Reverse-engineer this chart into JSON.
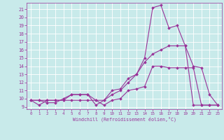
{
  "xlabel": "Windchill (Refroidissement éolien,°C)",
  "bg_color": "#c8eaea",
  "line_color": "#993399",
  "grid_color": "#ffffff",
  "xlim": [
    -0.5,
    23.5
  ],
  "ylim": [
    8.7,
    21.8
  ],
  "yticks": [
    9,
    10,
    11,
    12,
    13,
    14,
    15,
    16,
    17,
    18,
    19,
    20,
    21
  ],
  "xticks": [
    0,
    1,
    2,
    3,
    4,
    5,
    6,
    7,
    8,
    9,
    10,
    11,
    12,
    13,
    14,
    15,
    16,
    17,
    18,
    19,
    20,
    21,
    22,
    23
  ],
  "line1_x": [
    0,
    1,
    2,
    3,
    4,
    5,
    6,
    7,
    8,
    9,
    10,
    11,
    12,
    13,
    14,
    15,
    16,
    17,
    18,
    19,
    20,
    21,
    22,
    23
  ],
  "line1_y": [
    9.8,
    9.8,
    9.5,
    9.5,
    10.0,
    10.5,
    10.5,
    10.5,
    9.2,
    9.8,
    11.0,
    11.2,
    12.5,
    13.0,
    15.0,
    21.2,
    21.5,
    18.7,
    19.0,
    16.5,
    14.0,
    13.8,
    10.5,
    9.2
  ],
  "line2_x": [
    0,
    1,
    2,
    3,
    4,
    5,
    6,
    7,
    8,
    9,
    10,
    11,
    12,
    13,
    14,
    15,
    16,
    17,
    18,
    19,
    20,
    21,
    22,
    23
  ],
  "line2_y": [
    9.8,
    9.8,
    9.8,
    9.8,
    9.8,
    9.8,
    9.8,
    9.8,
    9.8,
    9.8,
    10.5,
    11.0,
    12.0,
    13.0,
    14.5,
    15.5,
    16.0,
    16.5,
    16.5,
    16.5,
    9.2,
    9.2,
    9.2,
    9.2
  ],
  "line3_x": [
    0,
    1,
    2,
    3,
    4,
    5,
    6,
    7,
    8,
    9,
    10,
    11,
    12,
    13,
    14,
    15,
    16,
    17,
    18,
    19,
    20,
    21,
    22,
    23
  ],
  "line3_y": [
    9.8,
    9.2,
    9.8,
    9.8,
    9.8,
    10.5,
    10.5,
    10.5,
    9.8,
    9.2,
    9.8,
    10.0,
    11.0,
    11.2,
    11.5,
    14.0,
    14.0,
    13.8,
    13.8,
    13.8,
    13.8,
    9.2,
    9.2,
    9.2
  ],
  "marker": "D",
  "marker_size": 1.8,
  "line_width": 0.8
}
